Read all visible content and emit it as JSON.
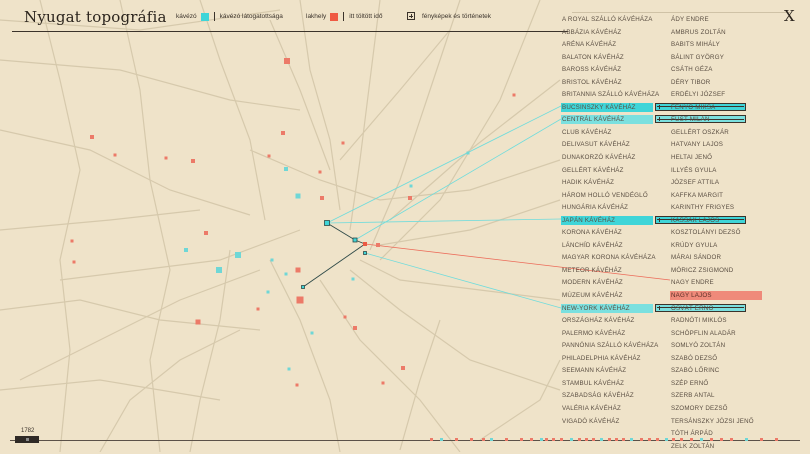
{
  "header": {
    "title": "Nyugat topográfia",
    "close_label": "X",
    "legend": {
      "cafe_label": "kávézó",
      "cafe_visits_label": "kávézó látogatottsága",
      "home_label": "lakhely",
      "home_time_label": "itt töltött idő",
      "stories_label": "fényképek és történetek"
    }
  },
  "colors": {
    "cafe": "#3fd5d8",
    "home": "#ef5a43",
    "background": "#efe3c9"
  },
  "cafes": [
    "A ROYAL SZÁLLÓ KÁVÉHÁZA",
    "ABBÁZIA KÁVÉHÁZ",
    "ARÉNA KÁVÉHÁZ",
    "BALATON KÁVÉHÁZ",
    "BAROSS KÁVÉHÁZ",
    "BRISTOL KÁVÉHÁZ",
    "BRITANNIA SZÁLLÓ KÁVÉHÁZA",
    "BUCSINSZKY KÁVÉHÁZ",
    "CENTRÁL KÁVÉHÁZ",
    "CLUB KÁVÉHÁZ",
    "DELIVASUT KÁVÉHÁZ",
    "DUNAKORZÓ KÁVÉHÁZ",
    "GELLÉRT KÁVÉHÁZ",
    "HADIK KÁVÉHÁZ",
    "HÁROM HOLLÓ VENDÉGLŐ",
    "HUNGÁRIA KÁVÉHÁZ",
    "JAPÁN KÁVÉHÁZ",
    "KORONA KÁVÉHÁZ",
    "LÁNCHÍD KÁVÉHÁZ",
    "MAGYAR KORONA KÁVÉHÁZA",
    "METEOR KÁVÉHÁZ",
    "MODERN KÁVÉHÁZ",
    "MÚZEUM KÁVÉHÁZ",
    "NEW-YORK KÁVÉHÁZ",
    "ORSZÁGHÁZ KÁVÉHÁZ",
    "PALERMO KÁVÉHÁZ",
    "PANNÓNIA SZÁLLÓ KÁVÉHÁZA",
    "PHILADELPHIA KÁVÉHÁZ",
    "SEEMANN KÁVÉHÁZ",
    "STAMBUL KÁVÉHÁZ",
    "SZABADSÁG KÁVÉHÁZ",
    "VALÉRIA KÁVÉHÁZ",
    "VIGADÓ KÁVÉHÁZ"
  ],
  "cafes_highlighted": [
    7,
    8,
    16,
    23
  ],
  "cafes_with_stories": [
    7,
    8,
    16,
    23
  ],
  "writers": [
    "ÁDY ENDRE",
    "AMBRUS ZOLTÁN",
    "BABITS MIHÁLY",
    "BÁLINT GYÖRGY",
    "CSÁTH GÉZA",
    "DÉRY TIBOR",
    "ERDÉLYI JÓZSEF",
    "FENYŐ MIKSA",
    "FÜST MILÁN",
    "GELLÉRT OSZKÁR",
    "HATVANY LAJOS",
    "HELTAI JENŐ",
    "ILLYÉS GYULA",
    "JÓZSEF ATTILA",
    "KAFFKA MARGIT",
    "KARINTHY FRIGYES",
    "KASSÁK LAJOS",
    "KOSZTOLÁNYI DEZSŐ",
    "KRÚDY GYULA",
    "MÁRAI SÁNDOR",
    "MÓRICZ ZSIGMOND",
    "NAGY ENDRE",
    "NAGY LAJOS",
    "OSVÁT ERNŐ",
    "RADNÓTI MIKLÓS",
    "SCHÖPFLIN ALADÁR",
    "SOMLYÓ ZOLTÁN",
    "SZABÓ DEZSŐ",
    "SZABÓ LŐRINC",
    "SZÉP ERNŐ",
    "SZERB ANTAL",
    "SZOMORY DEZSŐ",
    "TERSÁNSZKY JÓZSI JENŐ",
    "TÓTH ÁRPÁD",
    "ZELK ZOLTÁN"
  ],
  "writer_selected": 22,
  "timeline": {
    "year": "1782"
  }
}
